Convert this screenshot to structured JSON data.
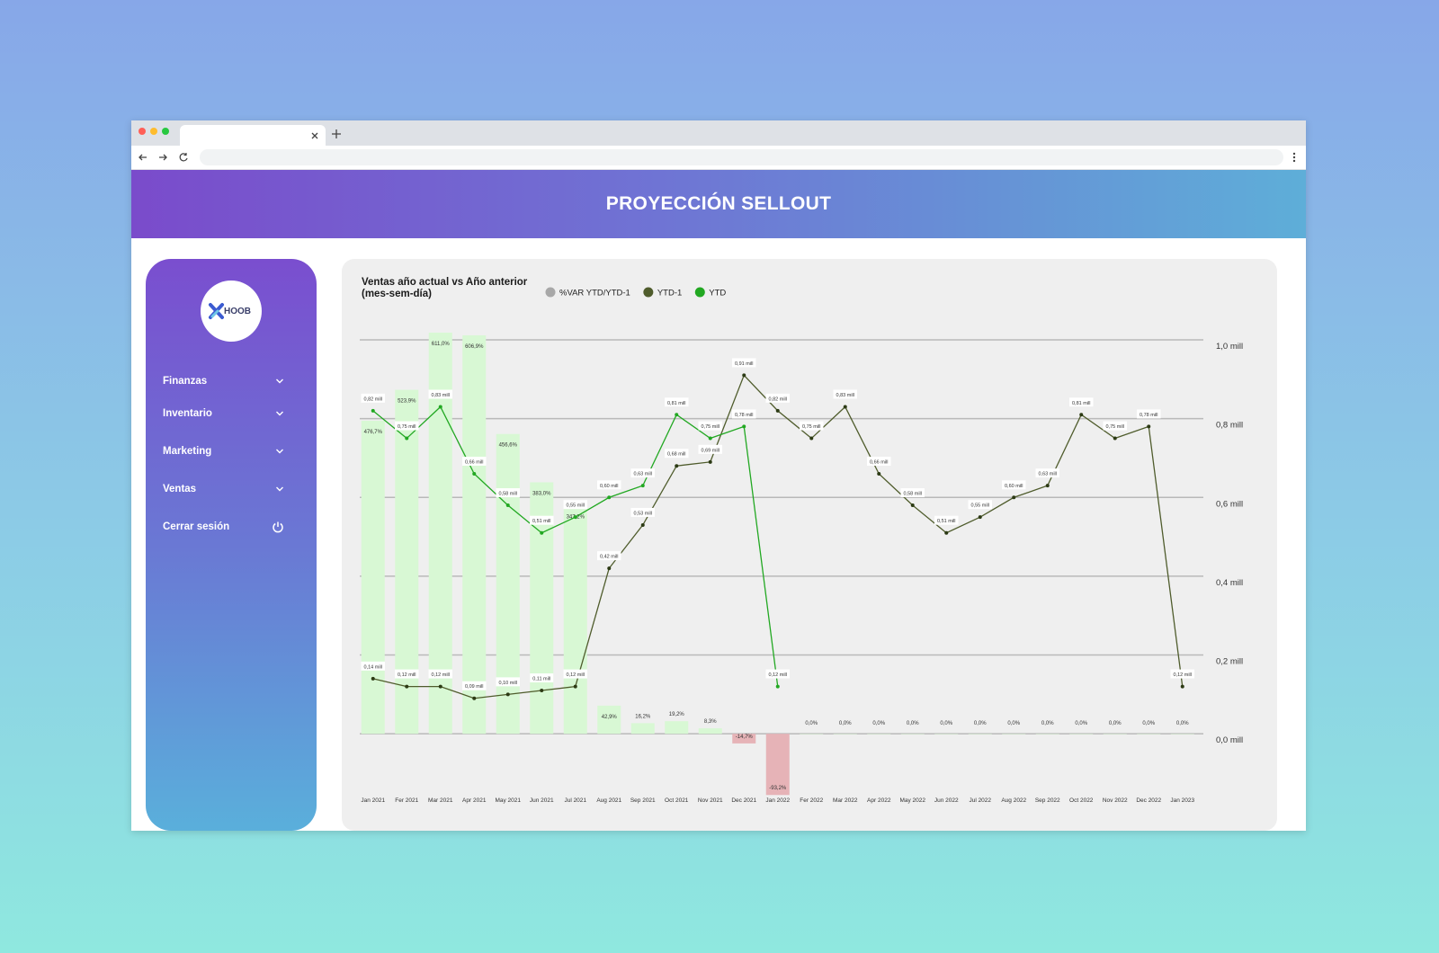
{
  "header": {
    "title": "PROYECCIÓN SELLOUT"
  },
  "sidebar": {
    "logo": "HOOB",
    "menu": [
      "Finanzas",
      "Inventario",
      "Marketing",
      "Ventas",
      "Cerrar sesión"
    ]
  },
  "chart_data": {
    "type": "combo",
    "title": "Ventas año actual vs Año anterior (mes-sem-día)",
    "categories": [
      "Jan 2021",
      "Fer 2021",
      "Mar 2021",
      "Apr 2021",
      "May 2021",
      "Jun 2021",
      "Jul 2021",
      "Aug 2021",
      "Sep 2021",
      "Oct 2021",
      "Nov 2021",
      "Dec 2021",
      "Jan 2022",
      "Fer 2022",
      "Mar 2022",
      "Apr 2022",
      "May 2022",
      "Jun 2022",
      "Jul 2022",
      "Aug 2022",
      "Sep 2022",
      "Oct 2022",
      "Nov 2022",
      "Dec 2022",
      "Jan 2023"
    ],
    "ylim": [
      -60,
      600
    ],
    "y2lim": [
      -0.1,
      1.0
    ],
    "y2ticks": [
      {
        "value": 0,
        "label": "0,0 mill"
      },
      {
        "value": 0.2,
        "label": "0,2 mill"
      },
      {
        "value": 0.4,
        "label": "0,4 mill"
      },
      {
        "value": 0.6,
        "label": "0,6 mill"
      },
      {
        "value": 0.8,
        "label": "0,8 mill"
      },
      {
        "value": 1.0,
        "label": "1,0 mill"
      }
    ],
    "grid": true,
    "series": [
      {
        "name": "%VAR YTD/YTD-1",
        "type": "bar",
        "color": "#d8f8d4",
        "negative_color": "#e6b3b7",
        "legend_color": "#a8a8a8",
        "values": [
          476.7,
          523.9,
          611.0,
          606.9,
          456.6,
          383.0,
          347.2,
          42.9,
          16.2,
          19.2,
          8.3,
          -14.7,
          -93.2,
          0,
          0,
          0,
          0,
          0,
          0,
          0,
          0,
          0,
          0,
          0,
          0
        ],
        "value_labels": [
          "476,7%",
          "523,9%",
          "611,0%",
          "606,9%",
          "456,6%",
          "383,0%",
          "347,2%",
          "42,9%",
          "16,2%",
          "19,2%",
          "8,3%",
          "-14,7%",
          "-93,2%",
          "0,0%",
          "0,0%",
          "0,0%",
          "0,0%",
          "0,0%",
          "0,0%",
          "0,0%",
          "0,0%",
          "0,0%",
          "0,0%",
          "0,0%",
          "0,0%"
        ]
      },
      {
        "name": "YTD-1",
        "type": "line",
        "axis": "y2",
        "color": "#4f5c2c",
        "values": [
          0.14,
          0.12,
          0.12,
          0.09,
          0.1,
          0.11,
          0.12,
          0.42,
          0.53,
          0.68,
          0.69,
          0.91,
          0.82,
          0.75,
          0.83,
          0.66,
          0.58,
          0.51,
          0.55,
          0.6,
          0.63,
          0.81,
          0.75,
          0.78,
          0.12
        ],
        "value_labels": [
          "0,14 mill",
          "0,12 mill",
          "0,12 mill",
          "0,09 mill",
          "0,10 mill",
          "0,11 mill",
          "0,12 mill",
          "0,42 mill",
          "0,53 mill",
          "0,68 mill",
          "0,69 mill",
          "0,91 mill",
          "0,82 mill",
          "0,75 mill",
          "0,83 mill",
          "0,66 mill",
          "0,58 mill",
          "0,51 mill",
          "0,55 mill",
          "0,60 mill",
          "0,63 mill",
          "0,81 mill",
          "0,75 mill",
          "0,78 mill",
          "0,12 mill"
        ]
      },
      {
        "name": "YTD",
        "type": "line",
        "axis": "y2",
        "color": "#22a822",
        "values": [
          0.82,
          0.75,
          0.83,
          0.66,
          0.58,
          0.51,
          0.55,
          0.6,
          0.63,
          0.81,
          0.75,
          0.78,
          0.12,
          null,
          null,
          null,
          null,
          null,
          null,
          null,
          null,
          null,
          null,
          null,
          null
        ],
        "value_labels": [
          "0,82 mill",
          "0,75 mill",
          "0,83 mill",
          "0,66 mill",
          "0,58 mill",
          "0,51 mill",
          "0,55 mill",
          "0,60 mill",
          "0,63 mill",
          "0,81 mill",
          "0,75 mill",
          "0,78 mill",
          "0,12 mill",
          null,
          null,
          null,
          null,
          null,
          null,
          null,
          null,
          null,
          null,
          null,
          null
        ]
      }
    ]
  }
}
